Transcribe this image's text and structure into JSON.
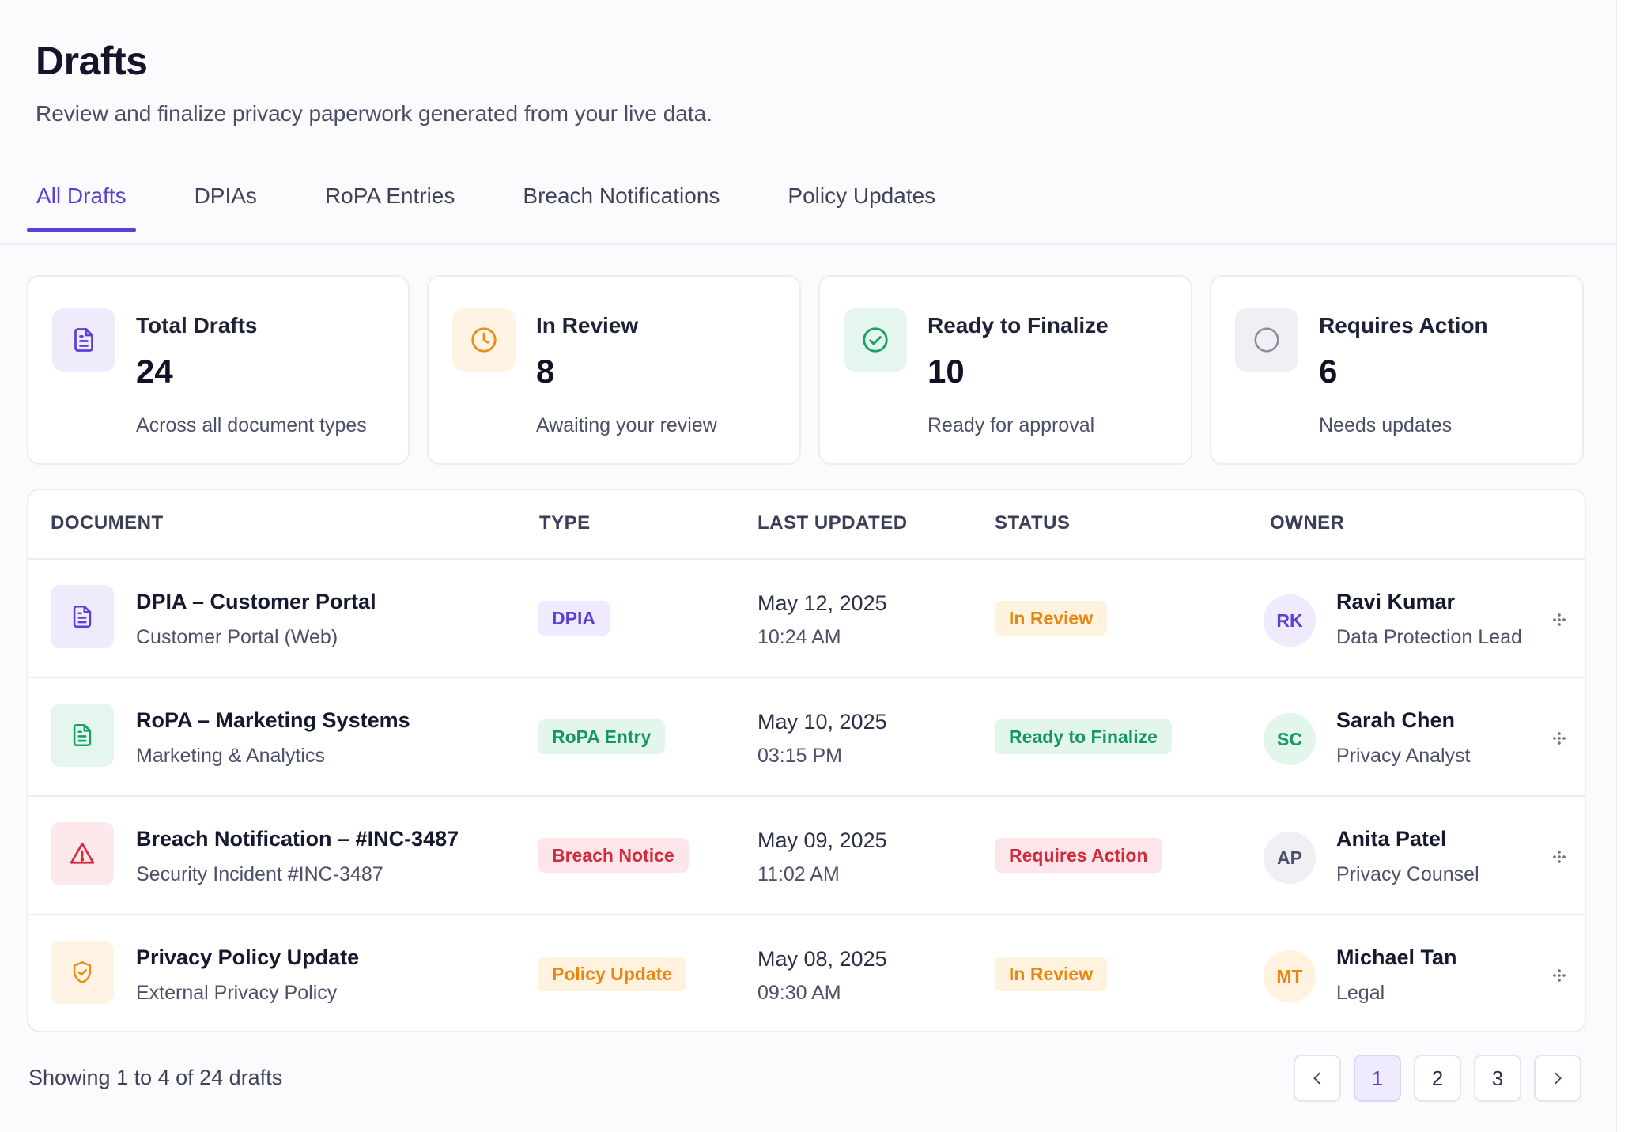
{
  "header": {
    "title": "Drafts",
    "subtitle": "Review and finalize privacy paperwork generated from your live data."
  },
  "tabs": [
    {
      "label": "All Drafts",
      "active": true
    },
    {
      "label": "DPIAs"
    },
    {
      "label": "RoPA Entries"
    },
    {
      "label": "Breach Notifications"
    },
    {
      "label": "Policy Updates"
    }
  ],
  "cards": [
    {
      "label": "Total Drafts",
      "value": "24",
      "desc": "Across all document types",
      "icon": "document-icon",
      "color": "#5b3fd6"
    },
    {
      "label": "In Review",
      "value": "8",
      "desc": "Awaiting your review",
      "icon": "clock-icon",
      "color": "#f08c1a"
    },
    {
      "label": "Ready to Finalize",
      "value": "10",
      "desc": "Ready for approval",
      "icon": "check-circle-icon",
      "color": "#16a06a"
    },
    {
      "label": "Requires Action",
      "value": "6",
      "desc": "Needs updates",
      "icon": "circle-icon",
      "color": "#8b8ea3"
    }
  ],
  "table": {
    "headers": {
      "document": "DOCUMENT",
      "type": "TYPE",
      "updated": "LAST UPDATED",
      "status": "STATUS",
      "owner": "OWNER"
    },
    "rows": [
      {
        "title": "DPIA – Customer Portal",
        "sub": "Customer Portal (Web)",
        "type": "DPIA",
        "date": "May 12, 2025",
        "time": "10:24 AM",
        "status": "In Review",
        "initials": "RK",
        "owner": "Ravi Kumar",
        "role": "Data Protection Lead",
        "icon": "document-icon"
      },
      {
        "title": "RoPA – Marketing Systems",
        "sub": "Marketing & Analytics",
        "type": "RoPA Entry",
        "date": "May 10, 2025",
        "time": "03:15 PM",
        "status": "Ready to Finalize",
        "initials": "SC",
        "owner": "Sarah Chen",
        "role": "Privacy Analyst",
        "icon": "document-icon"
      },
      {
        "title": "Breach Notification – #INC-3487",
        "sub": "Security Incident #INC-3487",
        "type": "Breach Notice",
        "date": "May 09, 2025",
        "time": "11:02 AM",
        "status": "Requires Action",
        "initials": "AP",
        "owner": "Anita Patel",
        "role": "Privacy Counsel",
        "icon": "warning-icon"
      },
      {
        "title": "Privacy Policy Update",
        "sub": "External Privacy Policy",
        "type": "Policy Update",
        "date": "May 08, 2025",
        "time": "09:30 AM",
        "status": "In Review",
        "initials": "MT",
        "owner": "Michael Tan",
        "role": "Legal",
        "icon": "shield-icon"
      }
    ]
  },
  "footer": {
    "showing": "Showing 1 to 4 of 24 drafts",
    "pages": [
      "1",
      "2",
      "3"
    ],
    "current_page": "1"
  },
  "colors": {
    "accent": "#5b3fd6",
    "in_review": "#f08c1a",
    "ready": "#16a06a",
    "requires_action": "#d8283f"
  }
}
